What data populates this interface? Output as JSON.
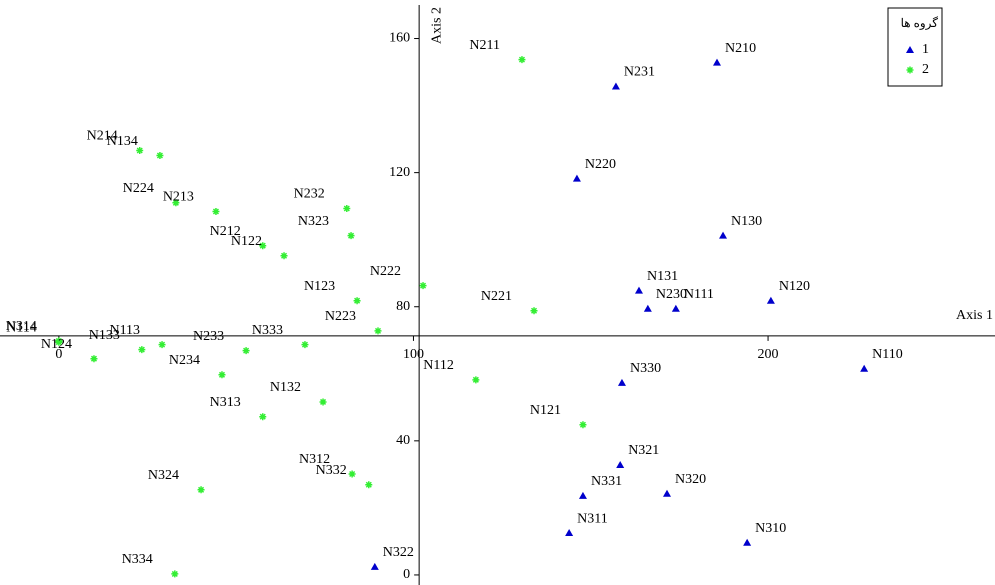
{
  "chart_data": {
    "type": "scatter",
    "x_label": "Axis 1",
    "y_label": "Axis 2",
    "xlim": [
      -16.6,
      264
    ],
    "ylim": [
      -3,
      170
    ],
    "xticks": [
      0,
      100,
      200
    ],
    "yticks": [
      0,
      40,
      80,
      120,
      160
    ],
    "x_axis_at": 71.3,
    "y_axis_at": 101.6,
    "legend_title": "گروه ها",
    "legend_position": "upper right",
    "series": [
      {
        "name": "1",
        "color": "#0000cc",
        "marker": "triangle",
        "point_labels": [
          "N210",
          "N231",
          "N220",
          "N130",
          "N131",
          "N230",
          "N111",
          "N120",
          "N110",
          "N330",
          "N321",
          "N331",
          "N320",
          "N311",
          "N310",
          "N322"
        ],
        "x": [
          185.6,
          157.1,
          146.1,
          187.3,
          163.6,
          166.1,
          174.0,
          200.8,
          227.1,
          158.8,
          158.3,
          147.8,
          171.5,
          143.9,
          194.1,
          89.1
        ],
        "y": [
          152.8,
          145.7,
          118.2,
          101.2,
          84.8,
          79.4,
          79.4,
          81.8,
          61.5,
          57.3,
          32.8,
          23.6,
          24.2,
          12.5,
          9.6,
          2.4
        ]
      },
      {
        "name": "2",
        "color": "#33ee33",
        "marker": "star",
        "point_labels": [
          "N211",
          "N214",
          "N134",
          "N224",
          "N213",
          "N232",
          "N323",
          "N212",
          "N122",
          "N123",
          "N223",
          "N222",
          "N221",
          "N314",
          "N114",
          "N133",
          "N124",
          "N113",
          "N233",
          "N333",
          "N234",
          "N112",
          "N132",
          "N313",
          "N121",
          "N324",
          "N312",
          "N332",
          "N334"
        ],
        "x": [
          130.6,
          22.8,
          28.5,
          33.0,
          44.3,
          81.2,
          82.4,
          57.5,
          63.5,
          84.1,
          90.0,
          102.7,
          134.0,
          0,
          0,
          23.4,
          9.9,
          29.1,
          52.8,
          69.4,
          46.0,
          117.6,
          74.5,
          57.5,
          147.8,
          40.1,
          82.7,
          87.4,
          32.7
        ],
        "y": [
          153.7,
          126.6,
          125.1,
          111.0,
          108.4,
          109.3,
          101.2,
          98.2,
          95.2,
          81.8,
          72.8,
          86.3,
          78.8,
          69.8,
          69.4,
          67.2,
          64.5,
          68.7,
          66.9,
          68.7,
          59.7,
          58.2,
          51.6,
          47.2,
          44.8,
          25.4,
          30.1,
          26.9,
          0.3
        ]
      }
    ]
  }
}
